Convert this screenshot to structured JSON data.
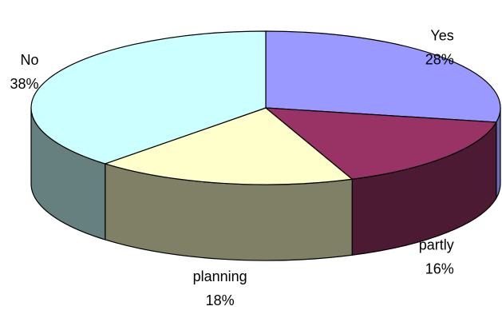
{
  "chart_data": {
    "type": "pie",
    "style": "3d",
    "title": "",
    "slices": [
      {
        "label": "Yes",
        "value": 28,
        "value_label": "28%",
        "color": "#9999ff",
        "side_color": "#6b6bb3"
      },
      {
        "label": "partly",
        "value": 16,
        "value_label": "16%",
        "color": "#993366",
        "side_color": "#4d1a33"
      },
      {
        "label": "planning",
        "value": 18,
        "value_label": "18%",
        "color": "#ffffcc",
        "side_color": "#808066"
      },
      {
        "label": "No",
        "value": 38,
        "value_label": "38%",
        "color": "#ccffff",
        "side_color": "#668080"
      }
    ],
    "legend": "none",
    "grid": false
  }
}
